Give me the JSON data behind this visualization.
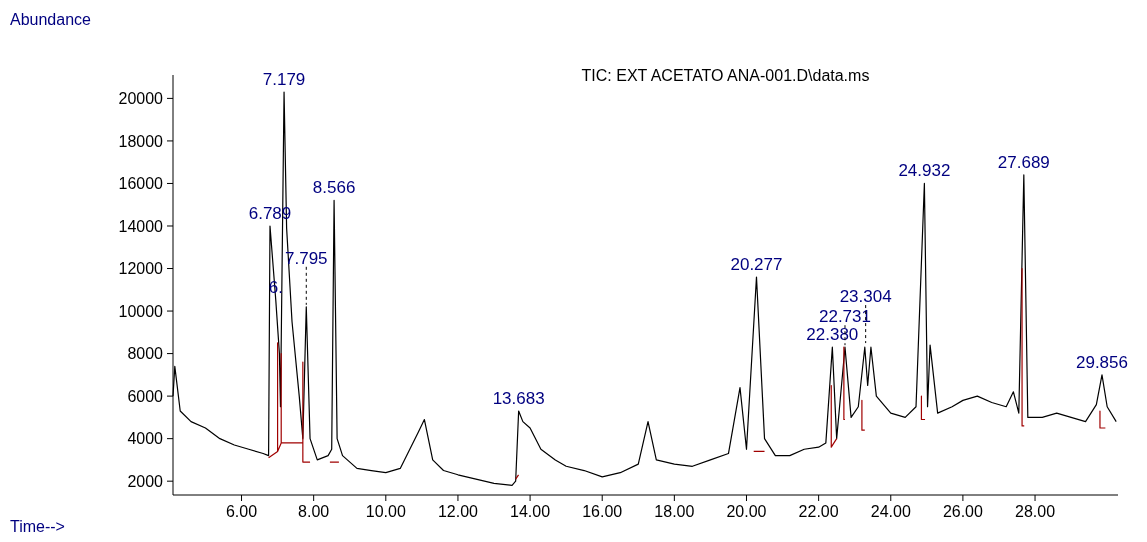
{
  "chart_data": {
    "type": "line",
    "title": "TIC: EXT ACETATO ANA-001.D\\data.ms",
    "xlabel": "Time-->",
    "ylabel": "Abundance",
    "xlim": [
      4.1,
      30.3
    ],
    "ylim": [
      1350,
      21100
    ],
    "xticks": [
      {
        "value": 6,
        "label": "6.00"
      },
      {
        "value": 8,
        "label": "8.00"
      },
      {
        "value": 10,
        "label": "10.00"
      },
      {
        "value": 12,
        "label": "12.00"
      },
      {
        "value": 14,
        "label": "14.00"
      },
      {
        "value": 16,
        "label": "16.00"
      },
      {
        "value": 18,
        "label": "18.00"
      },
      {
        "value": 20,
        "label": "20.00"
      },
      {
        "value": 22,
        "label": "22.00"
      },
      {
        "value": 24,
        "label": "24.00"
      },
      {
        "value": 26,
        "label": "26.00"
      },
      {
        "value": 28,
        "label": "28.00"
      }
    ],
    "yticks": [
      2000,
      4000,
      6000,
      8000,
      10000,
      12000,
      14000,
      16000,
      18000,
      20000
    ],
    "grid": false,
    "marker": "none",
    "line_style": "solid",
    "series": [
      {
        "color": "#000000",
        "x": [
          4.1,
          4.15,
          4.3,
          4.6,
          5.0,
          5.4,
          5.8,
          6.2,
          6.6,
          6.75,
          6.789,
          6.95,
          7.05,
          7.08,
          7.179,
          7.25,
          7.4,
          7.6,
          7.7,
          7.795,
          7.9,
          8.1,
          8.4,
          8.5,
          8.566,
          8.65,
          8.8,
          9.2,
          9.6,
          10.0,
          10.4,
          10.9,
          11.07,
          11.3,
          11.6,
          12.0,
          12.5,
          13.0,
          13.5,
          13.6,
          13.683,
          13.8,
          14.0,
          14.3,
          14.7,
          15.0,
          15.5,
          16.0,
          16.5,
          17.0,
          17.27,
          17.5,
          18.0,
          18.5,
          19.0,
          19.5,
          19.82,
          20.0,
          20.277,
          20.5,
          20.8,
          21.2,
          21.6,
          22.0,
          22.2,
          22.38,
          22.5,
          22.731,
          22.9,
          23.1,
          23.28,
          23.36,
          23.45,
          23.6,
          24.0,
          24.4,
          24.7,
          24.932,
          25.02,
          25.09,
          25.3,
          25.7,
          26.0,
          26.4,
          26.8,
          27.2,
          27.4,
          27.55,
          27.689,
          27.8,
          28.2,
          28.6,
          29.0,
          29.4,
          29.7,
          29.856,
          30.0,
          30.25
        ],
        "values": [
          6000,
          7400,
          5300,
          4800,
          4500,
          4000,
          3700,
          3500,
          3300,
          3200,
          14000,
          10500,
          8000,
          5500,
          20300,
          13900,
          9500,
          6000,
          4000,
          10200,
          4000,
          3000,
          3200,
          3500,
          15200,
          4000,
          3200,
          2600,
          2500,
          2400,
          2600,
          4300,
          4900,
          3000,
          2500,
          2300,
          2100,
          1900,
          1800,
          2000,
          5300,
          4800,
          4500,
          3500,
          3000,
          2700,
          2500,
          2200,
          2400,
          2800,
          4800,
          3000,
          2800,
          2700,
          3000,
          3300,
          6400,
          3500,
          11600,
          4000,
          3200,
          3200,
          3500,
          3600,
          3800,
          8300,
          4000,
          8300,
          5000,
          5500,
          8300,
          6500,
          8300,
          6000,
          5200,
          5000,
          5500,
          16000,
          5500,
          8400,
          5200,
          5500,
          5800,
          6000,
          5700,
          5500,
          6200,
          5200,
          16400,
          5000,
          5000,
          5200,
          5000,
          4800,
          5600,
          7000,
          5500,
          4800
        ]
      },
      {
        "color": "#a00000",
        "x": [
          6.75,
          7.0,
          7.0,
          7.0,
          7.1,
          7.1,
          7.1,
          7.7,
          7.7,
          7.7,
          7.9,
          8.0,
          8.45,
          8.7,
          13.0,
          13.6,
          13.68,
          20.0,
          20.2,
          20.5,
          22.0,
          22.35,
          22.35,
          22.35,
          22.5,
          22.6,
          22.7,
          22.7,
          22.7,
          22.73,
          23.0,
          23.2,
          23.2,
          23.2,
          23.28,
          24.5,
          24.85,
          24.85,
          24.85,
          24.95,
          27.0,
          27.64,
          27.64,
          27.64,
          27.7,
          29.0,
          29.8,
          29.8,
          29.8,
          29.95
        ],
        "values": [
          3100,
          3400,
          8500,
          3400,
          3800,
          8000,
          3800,
          3800,
          7600,
          2900,
          2900,
          null,
          2900,
          2900,
          null,
          2100,
          2300,
          null,
          3400,
          3400,
          null,
          3600,
          6500,
          3600,
          4000,
          null,
          4900,
          8300,
          4900,
          4900,
          null,
          4400,
          5800,
          4400,
          4400,
          null,
          4900,
          6000,
          4900,
          4900,
          null,
          4600,
          12000,
          4600,
          4600,
          null,
          4500,
          5300,
          4500,
          4500
        ]
      }
    ],
    "annotations": [
      {
        "text": "7.179",
        "x": 7.179,
        "y": 20300
      },
      {
        "text": "6.789",
        "x": 6.789,
        "y": 14000
      },
      {
        "text": "8.566",
        "x": 8.566,
        "y": 15200
      },
      {
        "text": "6.",
        "x": 6.95,
        "y": 10500
      },
      {
        "text": "7.795",
        "x": 7.795,
        "y": 10200
      },
      {
        "text": "13.683",
        "x": 13.683,
        "y": 5300
      },
      {
        "text": "20.277",
        "x": 20.277,
        "y": 11600
      },
      {
        "text": "22.380",
        "x": 22.38,
        "y": 8300
      },
      {
        "text": "22.731",
        "x": 22.731,
        "y": 8300
      },
      {
        "text": "23.304",
        "x": 23.304,
        "y": 8400
      },
      {
        "text": "24.932",
        "x": 24.932,
        "y": 16000
      },
      {
        "text": "27.689",
        "x": 27.689,
        "y": 16400
      },
      {
        "text": "29.856",
        "x": 29.856,
        "y": 7000
      }
    ]
  }
}
